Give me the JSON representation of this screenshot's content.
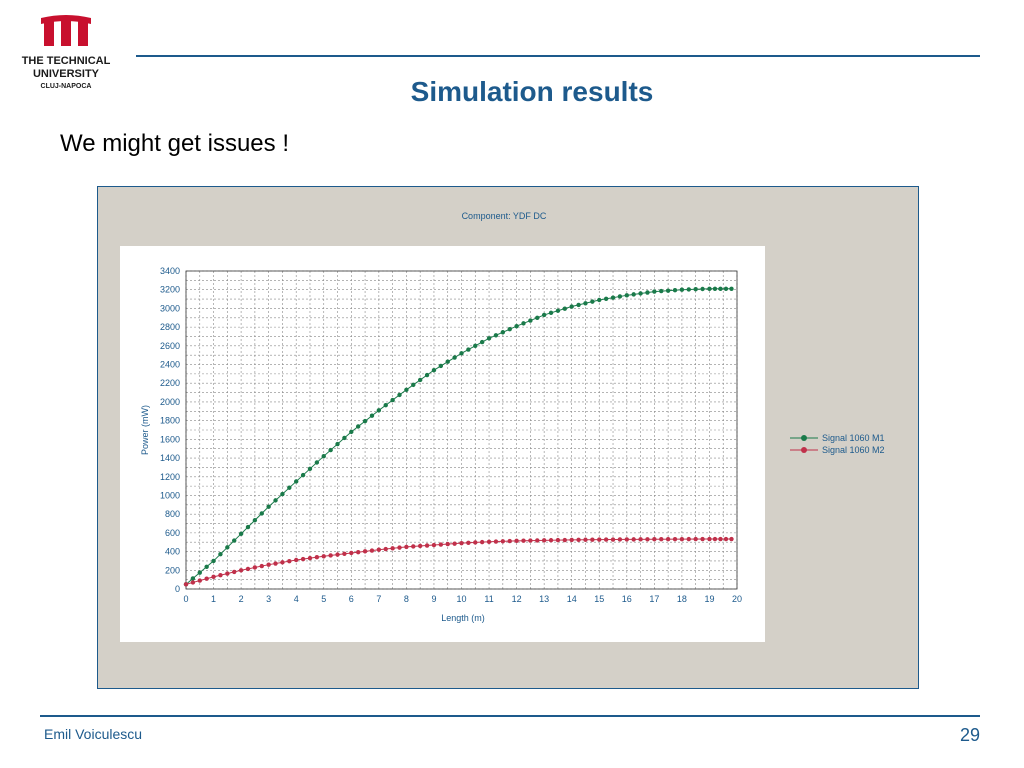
{
  "header": {
    "university_line1": "THE TECHNICAL",
    "university_line2": "UNIVERSITY",
    "university_line3": "CLUJ-NAPOCA",
    "title": "Simulation results",
    "subtitle": "We might get issues !"
  },
  "footer": {
    "author": "Emil Voiculescu",
    "page_number": "29"
  },
  "colors": {
    "accent": "#1d5a8c",
    "logo_red": "#c8102e",
    "series_m1": "#1a7a4a",
    "series_m2": "#c0304a",
    "panel_bg": "#d4d0c8"
  },
  "chart_data": {
    "type": "line",
    "title": "Component: YDF DC",
    "xlabel": "Length (m)",
    "ylabel": "Power (mW)",
    "xlim": [
      0,
      20
    ],
    "ylim": [
      0,
      3400
    ],
    "xticks": [
      "0",
      "1",
      "2",
      "3",
      "4",
      "5",
      "6",
      "7",
      "8",
      "9",
      "10",
      "11",
      "12",
      "13",
      "14",
      "15",
      "16",
      "17",
      "18",
      "19",
      "20"
    ],
    "yticks": [
      "0",
      "200",
      "400",
      "600",
      "800",
      "1000",
      "1200",
      "1400",
      "1600",
      "1800",
      "2000",
      "2200",
      "2400",
      "2600",
      "2800",
      "3000",
      "3200",
      "3400"
    ],
    "grid": true,
    "legend_position": "right",
    "x": [
      0,
      1,
      2,
      3,
      4,
      5,
      6,
      7,
      8,
      9,
      10,
      11,
      12,
      13,
      14,
      15,
      16,
      17,
      18,
      19,
      19.8
    ],
    "series": [
      {
        "name": "Signal 1060 M1",
        "values": [
          50,
          300,
          590,
          880,
          1150,
          1420,
          1680,
          1910,
          2130,
          2340,
          2520,
          2680,
          2810,
          2930,
          3020,
          3090,
          3140,
          3180,
          3200,
          3210,
          3210
        ]
      },
      {
        "name": "Signal 1060 M2",
        "values": [
          50,
          130,
          200,
          260,
          310,
          350,
          385,
          420,
          450,
          470,
          490,
          505,
          515,
          520,
          525,
          528,
          530,
          532,
          533,
          534,
          534
        ]
      }
    ]
  }
}
